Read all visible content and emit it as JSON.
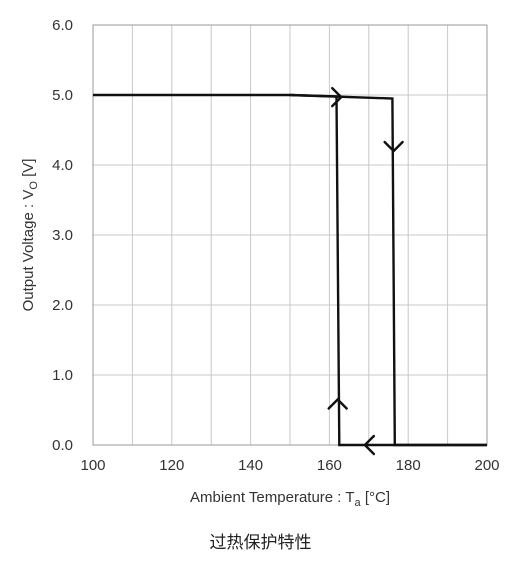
{
  "chart_data": {
    "type": "line",
    "xlabel_main": "Ambient Temperature : T",
    "xlabel_sub": "a",
    "xlabel_unit": " [°C]",
    "ylabel_main": "Output Voltage : V",
    "ylabel_sub": "O",
    "ylabel_unit": " [V]",
    "xlim": [
      100,
      200
    ],
    "ylim": [
      0,
      6
    ],
    "x_ticks": [
      "100",
      "120",
      "140",
      "160",
      "180",
      "200"
    ],
    "y_ticks": [
      "0.0",
      "1.0",
      "2.0",
      "3.0",
      "4.0",
      "5.0",
      "6.0"
    ],
    "grid": true,
    "series": [
      {
        "x": [
          100,
          150,
          176,
          176.6,
          200
        ],
        "y": [
          5.0,
          5.0,
          4.95,
          0.0,
          0.0
        ]
      },
      {
        "x": [
          200,
          162.5,
          161.8,
          150
        ],
        "y": [
          0.0,
          0.0,
          4.98,
          5.0
        ]
      }
    ],
    "arrows": [
      {
        "x": 163,
        "y": 4.97,
        "dir": "right"
      },
      {
        "x": 176.3,
        "y": 4.2,
        "dir": "down"
      },
      {
        "x": 169,
        "y": 0.0,
        "dir": "left"
      },
      {
        "x": 162.1,
        "y": 0.65,
        "dir": "up"
      }
    ],
    "color": "#111111",
    "grid_color": "#c8c8c8"
  },
  "caption": "过热保护特性"
}
